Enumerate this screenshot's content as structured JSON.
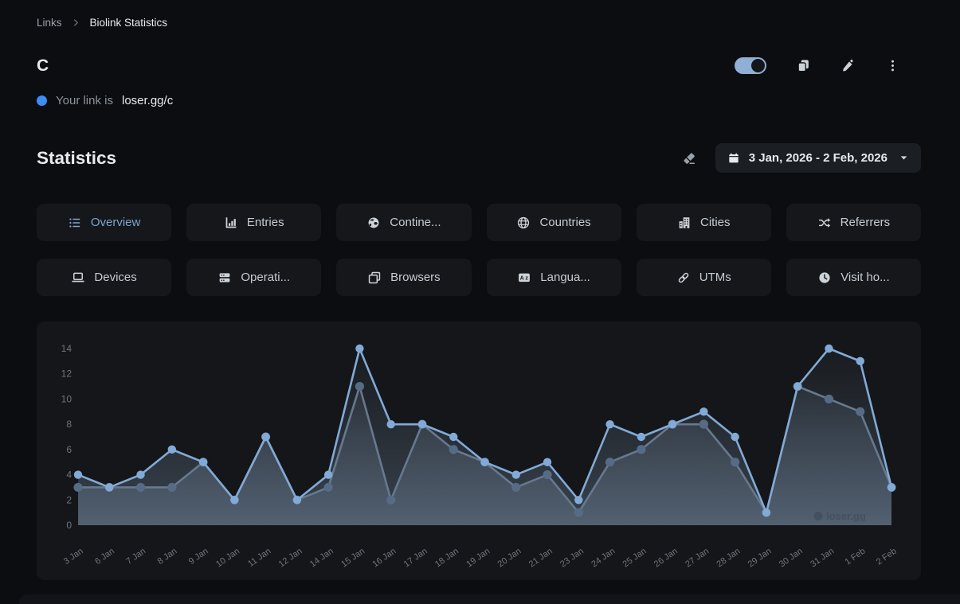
{
  "breadcrumb": {
    "parent": "Links",
    "current": "Biolink Statistics"
  },
  "link_header": {
    "title": "c",
    "status_prefix": "Your link is",
    "link_url": "loser.gg/c",
    "toggle_on": true,
    "action_icons": [
      "copy",
      "edit",
      "more-options"
    ]
  },
  "statistics": {
    "heading": "Statistics",
    "date_range": "3 Jan, 2026 - 2 Feb, 2026",
    "reset_icon": "eraser",
    "calendar_icon": "calendar",
    "caret_icon": "caret-down"
  },
  "tabs": [
    {
      "label": "Overview",
      "icon": "list",
      "active": true
    },
    {
      "label": "Entries",
      "icon": "chart",
      "active": false
    },
    {
      "label": "Contine...",
      "icon": "globe-earth",
      "active": false
    },
    {
      "label": "Countries",
      "icon": "globe-grid",
      "active": false
    },
    {
      "label": "Cities",
      "icon": "building",
      "active": false
    },
    {
      "label": "Referrers",
      "icon": "shuffle",
      "active": false
    },
    {
      "label": "Devices",
      "icon": "laptop",
      "active": false
    },
    {
      "label": "Operati...",
      "icon": "server",
      "active": false
    },
    {
      "label": "Browsers",
      "icon": "window",
      "active": false
    },
    {
      "label": "Langua...",
      "icon": "language",
      "active": false
    },
    {
      "label": "UTMs",
      "icon": "link",
      "active": false
    },
    {
      "label": "Visit ho...",
      "icon": "clock",
      "active": false
    }
  ],
  "chart_data": {
    "type": "line",
    "title": "",
    "xlabel": "",
    "ylabel": "",
    "x": [
      "3 Jan",
      "6 Jan",
      "7 Jan",
      "8 Jan",
      "9 Jan",
      "10 Jan",
      "11 Jan",
      "12 Jan",
      "14 Jan",
      "15 Jan",
      "16 Jan",
      "17 Jan",
      "18 Jan",
      "19 Jan",
      "20 Jan",
      "21 Jan",
      "23 Jan",
      "24 Jan",
      "25 Jan",
      "26 Jan",
      "27 Jan",
      "28 Jan",
      "29 Jan",
      "30 Jan",
      "31 Jan",
      "1 Feb",
      "2 Feb"
    ],
    "series": [
      {
        "name": "series-1",
        "color": "#82aad6",
        "marker_color": "#82aad6",
        "values": [
          4,
          3,
          4,
          6,
          5,
          2,
          7,
          2,
          4,
          14,
          8,
          8,
          7,
          5,
          4,
          5,
          2,
          8,
          7,
          8,
          9,
          7,
          1,
          11,
          14,
          13,
          3
        ]
      },
      {
        "name": "series-2",
        "color": "#66798f",
        "marker_color": "#566b85",
        "values": [
          3,
          3,
          3,
          3,
          5,
          2,
          7,
          2,
          3,
          11,
          2,
          8,
          6,
          5,
          3,
          4,
          1,
          5,
          6,
          8,
          8,
          5,
          1,
          11,
          10,
          9,
          3
        ]
      }
    ],
    "ylim": [
      0,
      14
    ],
    "yticks": [
      0,
      2,
      4,
      6,
      8,
      10,
      12,
      14
    ],
    "grid": false,
    "legend": "none",
    "fill": "area-gradient",
    "fill_color": "#8aa3bf",
    "axis_text_color": "#6e757c",
    "watermark": "loser.gg"
  },
  "colors": {
    "page_bg": "#0b0d10",
    "card_bg": "#141619",
    "accent_blue": "#7ea4ce",
    "link_dot": "#3e8cf4",
    "toggle_on": "#8fb0d4"
  }
}
